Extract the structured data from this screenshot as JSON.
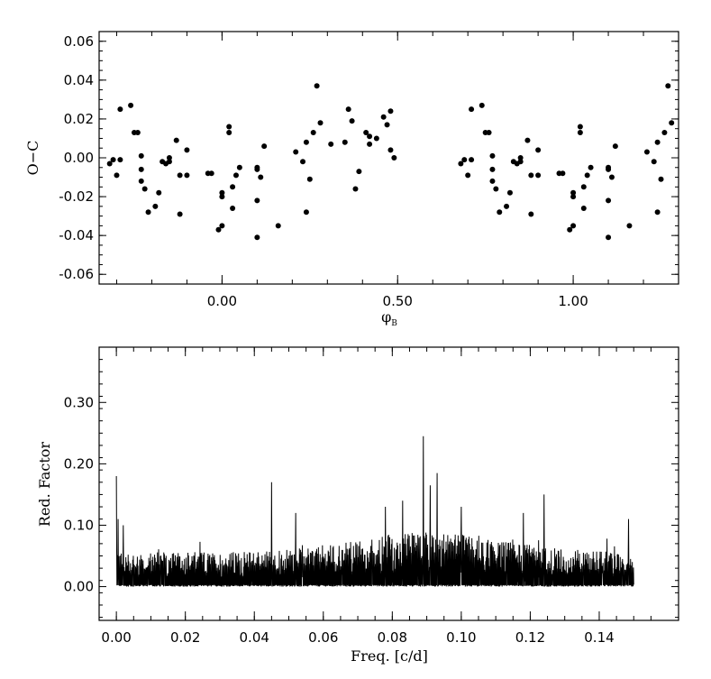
{
  "chart_data": [
    {
      "type": "scatter",
      "title": "",
      "xlabel": "φ",
      "xlabel_sub": "B",
      "ylabel": "O−C",
      "xlim": [
        -0.35,
        1.3
      ],
      "ylim": [
        -0.065,
        0.065
      ],
      "xticks": [
        0.0,
        0.5,
        1.0
      ],
      "xtick_labels": [
        "0.00",
        "0.50",
        "1.00"
      ],
      "yticks": [
        0.06,
        0.04,
        0.02,
        0.0,
        -0.02,
        -0.04,
        -0.06
      ],
      "ytick_labels": [
        "0.06",
        "0.04",
        "0.02",
        "0.00",
        "-0.02",
        "-0.04",
        "-0.06"
      ],
      "grid": false,
      "base_points": [
        [
          -0.32,
          -0.003
        ],
        [
          -0.31,
          -0.001
        ],
        [
          -0.3,
          -0.009
        ],
        [
          -0.29,
          0.025
        ],
        [
          -0.29,
          -0.001
        ],
        [
          -0.26,
          0.027
        ],
        [
          -0.25,
          0.013
        ],
        [
          -0.24,
          0.013
        ],
        [
          -0.23,
          -0.012
        ],
        [
          -0.23,
          0.001
        ],
        [
          -0.23,
          -0.006
        ],
        [
          -0.22,
          -0.016
        ],
        [
          -0.21,
          -0.028
        ],
        [
          -0.19,
          -0.025
        ],
        [
          -0.18,
          -0.018
        ],
        [
          -0.17,
          -0.002
        ],
        [
          -0.16,
          -0.003
        ],
        [
          -0.15,
          0.0
        ],
        [
          -0.15,
          -0.002
        ],
        [
          -0.13,
          0.009
        ],
        [
          -0.12,
          -0.029
        ],
        [
          -0.12,
          -0.009
        ],
        [
          -0.1,
          0.004
        ],
        [
          -0.1,
          -0.009
        ],
        [
          -0.04,
          -0.008
        ],
        [
          -0.03,
          -0.008
        ],
        [
          -0.01,
          -0.037
        ],
        [
          0.0,
          -0.035
        ],
        [
          0.0,
          -0.02
        ],
        [
          0.0,
          -0.018
        ],
        [
          0.02,
          0.016
        ],
        [
          0.02,
          0.013
        ],
        [
          0.03,
          -0.026
        ],
        [
          0.04,
          -0.009
        ],
        [
          0.05,
          -0.005
        ],
        [
          0.03,
          -0.015
        ],
        [
          0.1,
          -0.041
        ],
        [
          0.1,
          -0.022
        ],
        [
          0.1,
          -0.006
        ],
        [
          0.11,
          -0.01
        ],
        [
          0.12,
          0.006
        ],
        [
          0.1,
          -0.005
        ],
        [
          0.16,
          -0.035
        ],
        [
          0.21,
          0.003
        ],
        [
          0.23,
          -0.002
        ],
        [
          0.24,
          0.008
        ],
        [
          0.24,
          -0.028
        ],
        [
          0.25,
          -0.011
        ],
        [
          0.26,
          0.013
        ],
        [
          0.27,
          0.037
        ],
        [
          0.28,
          0.018
        ],
        [
          0.31,
          0.007
        ],
        [
          0.35,
          0.008
        ],
        [
          0.36,
          0.025
        ],
        [
          0.37,
          0.019
        ],
        [
          0.38,
          -0.016
        ],
        [
          0.39,
          -0.007
        ],
        [
          0.41,
          0.013
        ],
        [
          0.42,
          0.011
        ],
        [
          0.42,
          0.007
        ],
        [
          0.44,
          0.01
        ],
        [
          0.46,
          0.021
        ],
        [
          0.47,
          0.017
        ],
        [
          0.48,
          0.024
        ],
        [
          0.48,
          0.004
        ],
        [
          0.49,
          0.0
        ]
      ],
      "point_color": "#000000"
    },
    {
      "type": "line",
      "title": "",
      "xlabel": "Freq. [c/d]",
      "ylabel": "Red. Factor",
      "xlim": [
        -0.005,
        0.163
      ],
      "ylim": [
        -0.055,
        0.39
      ],
      "xticks": [
        0.0,
        0.02,
        0.04,
        0.06,
        0.08,
        0.1,
        0.12,
        0.14
      ],
      "xtick_labels": [
        "0.00",
        "0.02",
        "0.04",
        "0.06",
        "0.08",
        "0.10",
        "0.12",
        "0.14"
      ],
      "yticks": [
        0.3,
        0.2,
        0.1,
        0.0
      ],
      "ytick_labels": [
        "0.30",
        "0.20",
        "0.10",
        "0.00"
      ],
      "grid": false,
      "freq_range": [
        0.0,
        0.15
      ],
      "peaks": [
        [
          0.0,
          0.18
        ],
        [
          0.0005,
          0.11
        ],
        [
          0.002,
          0.1
        ],
        [
          0.045,
          0.17
        ],
        [
          0.089,
          0.245
        ],
        [
          0.091,
          0.165
        ],
        [
          0.093,
          0.185
        ],
        [
          0.124,
          0.15
        ],
        [
          0.1485,
          0.11
        ],
        [
          0.052,
          0.12
        ],
        [
          0.078,
          0.13
        ],
        [
          0.083,
          0.14
        ],
        [
          0.1,
          0.13
        ],
        [
          0.118,
          0.12
        ]
      ],
      "line_color": "#000000"
    }
  ]
}
